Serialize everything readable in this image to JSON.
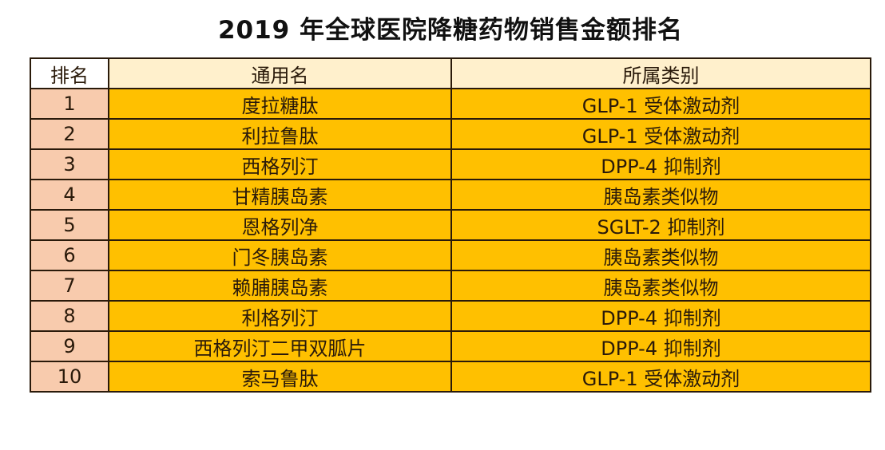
{
  "title": "2019 年全球医院降糖药物销售金额排名",
  "table": {
    "headers": {
      "rank": "排名",
      "name": "通用名",
      "category": "所属类别"
    },
    "rows": [
      {
        "rank": "1",
        "name": "度拉糖肽",
        "category": "GLP-1 受体激动剂"
      },
      {
        "rank": "2",
        "name": "利拉鲁肽",
        "category": "GLP-1 受体激动剂"
      },
      {
        "rank": "3",
        "name": "西格列汀",
        "category": "DPP-4 抑制剂"
      },
      {
        "rank": "4",
        "name": "甘精胰岛素",
        "category": "胰岛素类似物"
      },
      {
        "rank": "5",
        "name": "恩格列净",
        "category": "SGLT-2 抑制剂"
      },
      {
        "rank": "6",
        "name": "门冬胰岛素",
        "category": "胰岛素类似物"
      },
      {
        "rank": "7",
        "name": "赖脯胰岛素",
        "category": "胰岛素类似物"
      },
      {
        "rank": "8",
        "name": "利格列汀",
        "category": "DPP-4 抑制剂"
      },
      {
        "rank": "9",
        "name": "西格列汀二甲双胍片",
        "category": "DPP-4 抑制剂"
      },
      {
        "rank": "10",
        "name": "索马鲁肽",
        "category": "GLP-1 受体激动剂"
      }
    ]
  },
  "colors": {
    "header_rank_bg": "#ffffff",
    "header_bg": "#fff0cc",
    "rank_cell_bg": "#f8cbad",
    "data_cell_bg": "#ffc000",
    "border": "#2a1a0a"
  }
}
